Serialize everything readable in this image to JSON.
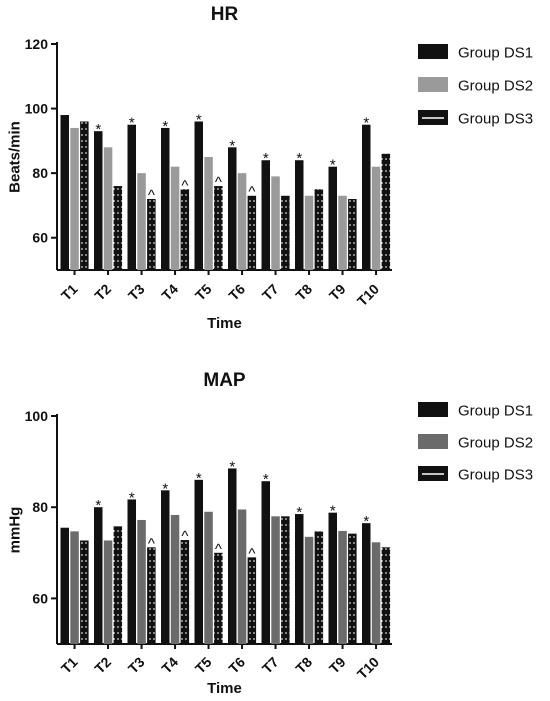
{
  "chart_data": [
    {
      "type": "bar",
      "title": "HR",
      "xlabel": "Time",
      "ylabel": "Beats/min",
      "ylim": [
        50,
        120
      ],
      "yticks": [
        60,
        80,
        100,
        120
      ],
      "categories": [
        "T1",
        "T2",
        "T3",
        "T4",
        "T5",
        "T6",
        "T7",
        "T8",
        "T9",
        "T10"
      ],
      "grid": false,
      "legend_position": "right",
      "colors": [
        "#111111",
        "#9a9a9a",
        "#111111"
      ],
      "series": [
        {
          "name": "Group DS1",
          "values": [
            98,
            93,
            95,
            94,
            96,
            88,
            84,
            84,
            82,
            95
          ]
        },
        {
          "name": "Group DS2",
          "values": [
            94,
            88,
            80,
            82,
            85,
            80,
            79,
            73,
            73,
            82
          ]
        },
        {
          "name": "Group DS3",
          "values": [
            96,
            76,
            72,
            75,
            76,
            73,
            73,
            75,
            72,
            86
          ]
        }
      ],
      "annotations": [
        {
          "category": "T2",
          "series": "Group DS1",
          "text": "*"
        },
        {
          "category": "T3",
          "series": "Group DS1",
          "text": "*"
        },
        {
          "category": "T3",
          "series": "Group DS3",
          "text": "^"
        },
        {
          "category": "T4",
          "series": "Group DS1",
          "text": "*"
        },
        {
          "category": "T4",
          "series": "Group DS3",
          "text": "^"
        },
        {
          "category": "T5",
          "series": "Group DS1",
          "text": "*"
        },
        {
          "category": "T5",
          "series": "Group DS3",
          "text": "^"
        },
        {
          "category": "T6",
          "series": "Group DS1",
          "text": "*"
        },
        {
          "category": "T6",
          "series": "Group DS3",
          "text": "^"
        },
        {
          "category": "T7",
          "series": "Group DS1",
          "text": "*"
        },
        {
          "category": "T8",
          "series": "Group DS1",
          "text": "*"
        },
        {
          "category": "T9",
          "series": "Group DS1",
          "text": "*"
        },
        {
          "category": "T10",
          "series": "Group DS1",
          "text": "*"
        }
      ]
    },
    {
      "type": "bar",
      "title": "MAP",
      "xlabel": "Time",
      "ylabel": "mmHg",
      "ylim": [
        50,
        100
      ],
      "yticks": [
        60,
        80,
        100
      ],
      "categories": [
        "T1",
        "T2",
        "T3",
        "T4",
        "T5",
        "T6",
        "T7",
        "T8",
        "T9",
        "T10"
      ],
      "grid": false,
      "legend_position": "right",
      "colors": [
        "#111111",
        "#6b6b6b",
        "#111111"
      ],
      "series": [
        {
          "name": "Group DS1",
          "values": [
            75.5,
            80,
            81.7,
            83.7,
            86,
            88.5,
            85.7,
            78.5,
            78.8,
            76.5
          ]
        },
        {
          "name": "Group DS2",
          "values": [
            74.7,
            72.7,
            77.2,
            78.3,
            79,
            79.5,
            78,
            73.5,
            74.8,
            72.3
          ]
        },
        {
          "name": "Group DS3",
          "values": [
            72.7,
            75.8,
            71.2,
            72.8,
            70,
            69,
            78,
            74.7,
            74.2,
            71.2
          ]
        }
      ],
      "annotations": [
        {
          "category": "T2",
          "series": "Group DS1",
          "text": "*"
        },
        {
          "category": "T3",
          "series": "Group DS1",
          "text": "*"
        },
        {
          "category": "T3",
          "series": "Group DS3",
          "text": "^"
        },
        {
          "category": "T4",
          "series": "Group DS1",
          "text": "*"
        },
        {
          "category": "T4",
          "series": "Group DS3",
          "text": "^"
        },
        {
          "category": "T5",
          "series": "Group DS1",
          "text": "*"
        },
        {
          "category": "T5",
          "series": "Group DS3",
          "text": "^"
        },
        {
          "category": "T6",
          "series": "Group DS1",
          "text": "*"
        },
        {
          "category": "T6",
          "series": "Group DS3",
          "text": "^"
        },
        {
          "category": "T7",
          "series": "Group DS1",
          "text": "*"
        },
        {
          "category": "T8",
          "series": "Group DS1",
          "text": "*"
        },
        {
          "category": "T9",
          "series": "Group DS1",
          "text": "*"
        },
        {
          "category": "T10",
          "series": "Group DS1",
          "text": "*"
        }
      ]
    }
  ]
}
